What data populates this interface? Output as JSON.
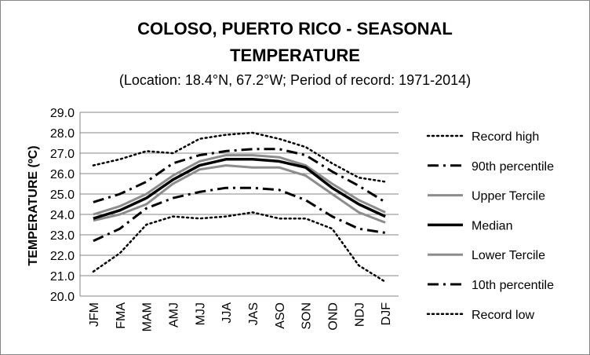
{
  "chart_data": {
    "type": "line",
    "title": "COLOSO, PUERTO RICO - SEASONAL TEMPERATURE",
    "title_lines": [
      "COLOSO, PUERTO RICO - SEASONAL",
      "TEMPERATURE"
    ],
    "subtitle": "(Location: 18.4°N, 67.2°W; Period of record: 1971-2014)",
    "ylabel": "TEMPERATURE (ºC)",
    "xlabel": "",
    "ylim": [
      20.0,
      29.0
    ],
    "yticks": [
      "20.0",
      "21.0",
      "22.0",
      "23.0",
      "24.0",
      "25.0",
      "26.0",
      "27.0",
      "28.0",
      "29.0"
    ],
    "grid": true,
    "legend_position": "right",
    "categories": [
      "JFM",
      "FMA",
      "MAM",
      "AMJ",
      "MJJ",
      "JJA",
      "JAS",
      "ASO",
      "SON",
      "OND",
      "NDJ",
      "DJF"
    ],
    "series": [
      {
        "name": "Record high",
        "style": "dotted",
        "color": "#000000",
        "values": [
          26.4,
          26.7,
          27.1,
          27.0,
          27.7,
          27.9,
          28.0,
          27.7,
          27.3,
          26.5,
          25.8,
          25.6
        ]
      },
      {
        "name": "90th percentile",
        "style": "dashdot",
        "color": "#000000",
        "values": [
          24.6,
          25.0,
          25.6,
          26.5,
          26.9,
          27.1,
          27.2,
          27.2,
          26.9,
          26.1,
          25.4,
          24.6
        ]
      },
      {
        "name": "Upper Tercile",
        "style": "solid",
        "color": "#8c8c8c",
        "values": [
          24.0,
          24.4,
          25.0,
          25.9,
          26.6,
          26.9,
          26.9,
          26.8,
          26.4,
          25.5,
          24.7,
          24.1
        ]
      },
      {
        "name": "Median",
        "style": "solid",
        "color": "#000000",
        "values": [
          23.8,
          24.2,
          24.8,
          25.7,
          26.4,
          26.7,
          26.7,
          26.6,
          26.3,
          25.3,
          24.5,
          23.9
        ]
      },
      {
        "name": "Lower Tercile",
        "style": "solid",
        "color": "#8c8c8c",
        "values": [
          23.7,
          24.0,
          24.5,
          25.5,
          26.2,
          26.4,
          26.3,
          26.3,
          25.9,
          25.0,
          24.1,
          23.6
        ]
      },
      {
        "name": "10th percentile",
        "style": "dashdot",
        "color": "#000000",
        "values": [
          22.7,
          23.3,
          24.3,
          24.8,
          25.1,
          25.3,
          25.3,
          25.2,
          24.7,
          23.9,
          23.3,
          23.1
        ]
      },
      {
        "name": "Record low",
        "style": "dotted",
        "color": "#000000",
        "values": [
          21.2,
          22.1,
          23.5,
          23.9,
          23.8,
          23.9,
          24.1,
          23.8,
          23.8,
          23.3,
          21.5,
          20.7
        ]
      }
    ]
  }
}
